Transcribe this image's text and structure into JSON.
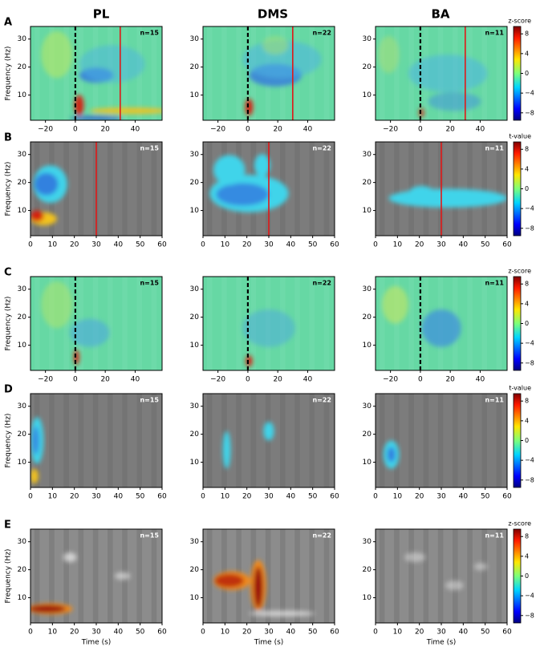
{
  "columns": [
    "PL",
    "DMS",
    "BA"
  ],
  "chart_data": [
    {
      "type": "heatmap",
      "panel_label": "A",
      "masked": false,
      "xlim": [
        -30,
        58
      ],
      "xticks": [
        {
          "value": -20,
          "label": "−20"
        },
        0,
        20,
        40
      ],
      "ylim": [
        1,
        34.5
      ],
      "yticks": [
        10,
        20,
        30
      ],
      "ylabel": "Frequency (Hz)",
      "colorbar_label": "z-score",
      "colorbar_lim": [
        -9.5,
        9.5
      ],
      "colorbar_ticks": [
        {
          "value": -8,
          "label": "−8"
        },
        {
          "value": -4,
          "label": "−4"
        },
        0,
        4,
        8
      ],
      "panels": [
        {
          "n": "n=15",
          "onset": 0,
          "offset": 30
        },
        {
          "n": "n=22",
          "onset": 0,
          "offset": 30
        },
        {
          "n": "n=11",
          "onset": 0,
          "offset": 30
        }
      ]
    },
    {
      "type": "heatmap",
      "panel_label": "B",
      "masked": true,
      "xlim": [
        0,
        60
      ],
      "xticks": [
        0,
        10,
        20,
        30,
        40,
        50,
        60
      ],
      "ylim": [
        1,
        34.5
      ],
      "yticks": [
        10,
        20,
        30
      ],
      "ylabel": "Frequency (Hz)",
      "colorbar_label": "t-value",
      "colorbar_lim": [
        -9.5,
        9.5
      ],
      "colorbar_ticks": [
        {
          "value": -8,
          "label": "−8"
        },
        {
          "value": -4,
          "label": "−4"
        },
        0,
        4,
        8
      ],
      "panels": [
        {
          "n": "n=15",
          "offset": 30
        },
        {
          "n": "n=22",
          "offset": 30
        },
        {
          "n": "n=11",
          "offset": 30
        }
      ]
    },
    {
      "type": "heatmap",
      "panel_label": "C",
      "masked": false,
      "xlim": [
        -30,
        58
      ],
      "xticks": [
        {
          "value": -20,
          "label": "−20"
        },
        0,
        20,
        40
      ],
      "ylim": [
        1,
        34.5
      ],
      "yticks": [
        10,
        20,
        30
      ],
      "ylabel": "Frequency (Hz)",
      "colorbar_label": "z-score",
      "colorbar_lim": [
        -9.5,
        9.5
      ],
      "colorbar_ticks": [
        {
          "value": -8,
          "label": "−8"
        },
        {
          "value": -4,
          "label": "−4"
        },
        0,
        4,
        8
      ],
      "panels": [
        {
          "n": "n=15",
          "onset": 0
        },
        {
          "n": "n=22",
          "onset": 0
        },
        {
          "n": "n=11",
          "onset": 0
        }
      ]
    },
    {
      "type": "heatmap",
      "panel_label": "D",
      "masked": true,
      "xlim": [
        0,
        60
      ],
      "xticks": [
        0,
        10,
        20,
        30,
        40,
        50,
        60
      ],
      "ylim": [
        1,
        34.5
      ],
      "yticks": [
        10,
        20,
        30
      ],
      "ylabel": "Frequency (Hz)",
      "colorbar_label": "t-value",
      "colorbar_lim": [
        -9.5,
        9.5
      ],
      "colorbar_ticks": [
        {
          "value": -8,
          "label": "−8"
        },
        {
          "value": -4,
          "label": "−4"
        },
        0,
        4,
        8
      ],
      "panels": [
        {
          "n": "n=15"
        },
        {
          "n": "n=22"
        },
        {
          "n": "n=11"
        }
      ]
    },
    {
      "type": "heatmap",
      "panel_label": "E",
      "masked": true,
      "xlim": [
        0,
        60
      ],
      "xticks": [
        0,
        10,
        20,
        30,
        40,
        50,
        60
      ],
      "ylim": [
        1,
        34.5
      ],
      "yticks": [
        10,
        20,
        30
      ],
      "ylabel": "Frequency (Hz)",
      "xlabel": "Time (s)",
      "colorbar_label": "z-score",
      "colorbar_lim": [
        -9.5,
        9.5
      ],
      "colorbar_ticks": [
        {
          "value": -8,
          "label": "−8"
        },
        {
          "value": -4,
          "label": "−4"
        },
        0,
        4,
        8
      ],
      "panels": [
        {
          "n": "n=15"
        },
        {
          "n": "n=22"
        },
        {
          "n": "n=11"
        }
      ]
    }
  ]
}
